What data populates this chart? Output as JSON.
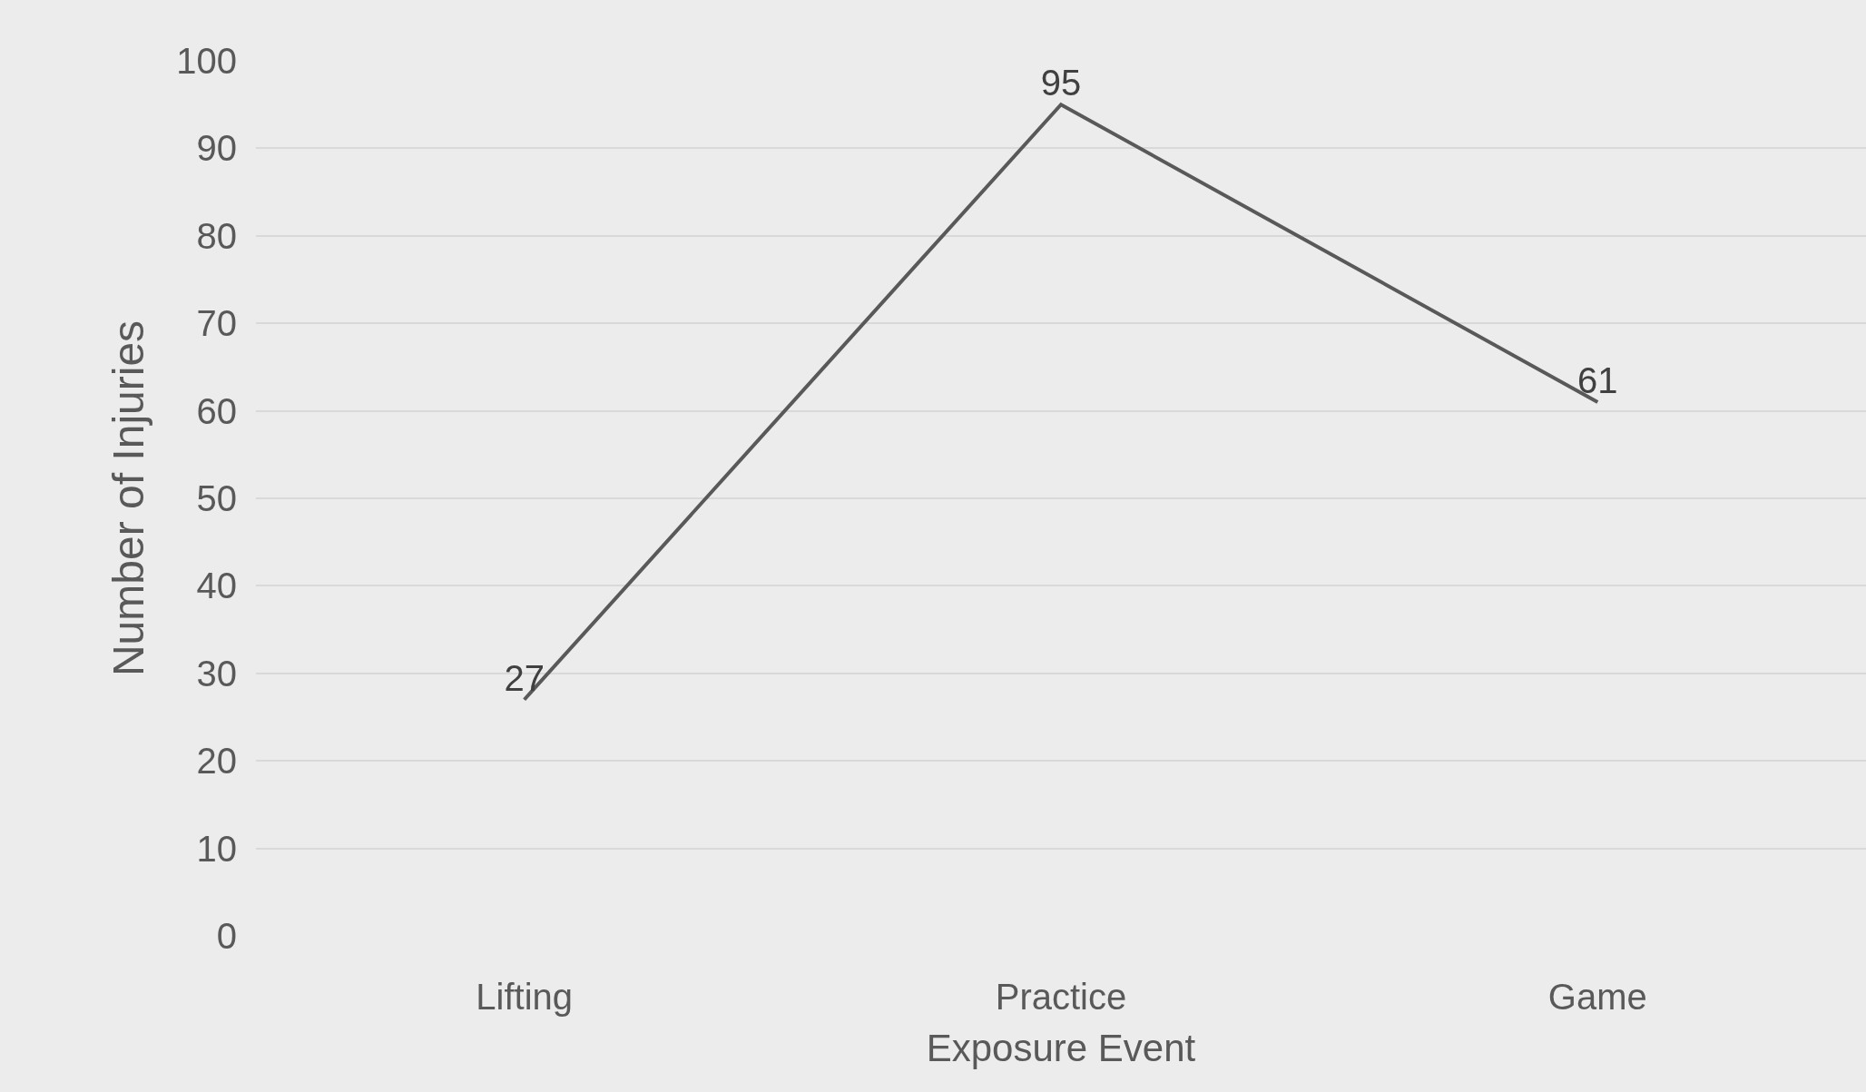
{
  "chart_data": {
    "type": "line",
    "xlabel": "Exposure Event",
    "ylabel": "Number of Injuries",
    "categories": [
      "Lifting",
      "Practice",
      "Game"
    ],
    "series": [
      {
        "color": "#595959",
        "values": [
          27,
          95,
          61
        ]
      }
    ],
    "ylim": [
      0,
      100
    ],
    "yticks": [
      0,
      10,
      20,
      30,
      40,
      50,
      60,
      70,
      80,
      90,
      100
    ],
    "grid": "y",
    "marker": "none",
    "line_style": "solid",
    "data_labels": true
  }
}
